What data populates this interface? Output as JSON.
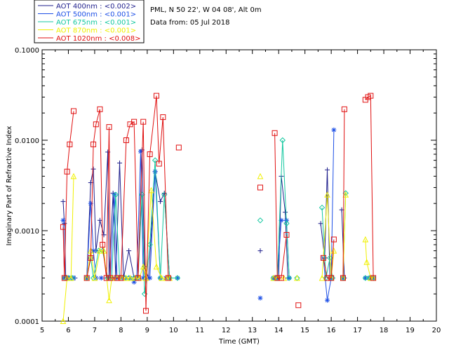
{
  "chart_data": {
    "type": "line",
    "title": "",
    "xlabel": "Time (GMT)",
    "ylabel": "Imaginary Part of Refractive Index",
    "xlim": [
      5,
      20
    ],
    "ylim": [
      0.0001,
      0.1
    ],
    "yscale": "log",
    "x_ticks": [
      5,
      6,
      7,
      8,
      9,
      10,
      11,
      12,
      13,
      14,
      15,
      16,
      17,
      18,
      19,
      20
    ],
    "x_tick_labels": [
      "5",
      "6",
      "7",
      "8",
      "9",
      "10",
      "11",
      "12",
      "13",
      "14",
      "15",
      "16",
      "17",
      "18",
      "19",
      "20"
    ],
    "y_ticks": [
      0.0001,
      0.001,
      0.01,
      0.1
    ],
    "y_tick_labels": [
      "0.0001",
      "0.0010",
      "0.0100",
      "0.1000"
    ],
    "info": {
      "site": "PML, N 50 22', W 04 08', Alt 0m",
      "date": "Data from: 05 Jul 2018"
    },
    "series": [
      {
        "name": "AOT 400nm",
        "legend": "AOT  400nm : <0.002>",
        "color": "#1e1e8c",
        "marker": "plus",
        "segments": [
          [
            [
              5.8,
              0.0021
            ],
            [
              5.85,
              0.0012
            ],
            [
              5.9,
              0.0003
            ],
            [
              6.0,
              0.0003
            ],
            [
              6.1,
              0.0003
            ],
            [
              6.25,
              0.0003
            ]
          ],
          [
            [
              6.7,
              0.0003
            ],
            [
              6.85,
              0.0034
            ],
            [
              6.95,
              0.0048
            ],
            [
              7.05,
              0.0006
            ],
            [
              7.2,
              0.0013
            ],
            [
              7.35,
              0.0009
            ],
            [
              7.5,
              0.0074
            ],
            [
              7.55,
              0.0003
            ],
            [
              7.7,
              0.0026
            ],
            [
              7.8,
              0.0003
            ],
            [
              7.95,
              0.0056
            ],
            [
              8.1,
              0.0003
            ],
            [
              8.3,
              0.0006
            ],
            [
              8.5,
              0.0003
            ],
            [
              8.65,
              0.0003
            ],
            [
              8.8,
              0.0078
            ],
            [
              8.9,
              0.0004
            ],
            [
              9.05,
              0.0003
            ],
            [
              9.3,
              0.0045
            ],
            [
              9.5,
              0.0021
            ],
            [
              9.65,
              0.0026
            ],
            [
              9.85,
              0.0003
            ],
            [
              10.15,
              0.0003
            ]
          ]
        ],
        "isolated": [
          [
            13.3,
            0.0006
          ]
        ],
        "segments2": [
          [
            [
              13.8,
              0.0003
            ],
            [
              13.9,
              0.0003
            ],
            [
              14.0,
              0.0003
            ],
            [
              14.1,
              0.004
            ],
            [
              14.25,
              0.0016
            ],
            [
              14.35,
              0.0003
            ]
          ],
          [
            [
              15.6,
              0.0012
            ],
            [
              15.75,
              0.0005
            ],
            [
              15.85,
              0.0047
            ],
            [
              15.95,
              0.0003
            ]
          ],
          [
            [
              16.4,
              0.0017
            ],
            [
              16.5,
              0.0003
            ]
          ],
          [
            [
              17.3,
              0.0003
            ],
            [
              17.45,
              0.0003
            ],
            [
              17.6,
              0.0003
            ]
          ]
        ]
      },
      {
        "name": "AOT 500nm",
        "legend": "AOT  500nm : <0.001>",
        "color": "#1e50e6",
        "marker": "asterisk",
        "segments": [
          [
            [
              5.8,
              0.0013
            ],
            [
              5.85,
              0.0003
            ],
            [
              5.95,
              0.0003
            ],
            [
              6.05,
              0.0003
            ],
            [
              6.2,
              0.0003
            ]
          ],
          [
            [
              6.7,
              0.0003
            ],
            [
              6.85,
              0.002
            ],
            [
              6.95,
              0.0006
            ],
            [
              7.05,
              0.0003
            ],
            [
              7.25,
              0.0003
            ],
            [
              7.5,
              0.0003
            ],
            [
              7.6,
              0.0003
            ],
            [
              7.75,
              0.0025
            ],
            [
              7.85,
              0.0003
            ],
            [
              8.05,
              0.0003
            ],
            [
              8.2,
              0.0003
            ],
            [
              8.35,
              0.0003
            ],
            [
              8.5,
              0.00027
            ],
            [
              8.6,
              0.0003
            ],
            [
              8.75,
              0.0075
            ],
            [
              8.85,
              0.0003
            ],
            [
              9.1,
              0.0003
            ],
            [
              9.3,
              0.0045
            ],
            [
              9.5,
              0.0003
            ],
            [
              9.7,
              0.0003
            ],
            [
              9.85,
              0.0003
            ],
            [
              10.15,
              0.0003
            ]
          ]
        ],
        "isolated": [
          [
            13.3,
            0.00018
          ]
        ],
        "segments2": [
          [
            [
              13.8,
              0.0003
            ],
            [
              13.95,
              0.0003
            ],
            [
              14.1,
              0.0013
            ],
            [
              14.3,
              0.0013
            ],
            [
              14.4,
              0.0003
            ]
          ],
          [
            [
              15.7,
              0.0005
            ],
            [
              15.85,
              0.00017
            ],
            [
              16.0,
              0.0003
            ],
            [
              16.1,
              0.013
            ]
          ],
          [
            [
              16.45,
              0.0003
            ]
          ],
          [
            [
              17.3,
              0.0003
            ],
            [
              17.45,
              0.0003
            ],
            [
              17.6,
              0.0003
            ]
          ]
        ]
      },
      {
        "name": "AOT 675nm",
        "legend": "AOT  675nm : <0.001>",
        "color": "#14c8a0",
        "marker": "diamond",
        "segments": [
          [
            [
              5.85,
              0.0003
            ],
            [
              6.0,
              0.0003
            ],
            [
              6.15,
              0.0003
            ]
          ],
          [
            [
              6.7,
              0.0003
            ],
            [
              6.85,
              0.0005
            ],
            [
              6.95,
              0.0003
            ],
            [
              7.15,
              0.0006
            ],
            [
              7.3,
              0.0006
            ],
            [
              7.5,
              0.0003
            ],
            [
              7.65,
              0.0003
            ],
            [
              7.8,
              0.0025
            ],
            [
              7.95,
              0.0003
            ],
            [
              8.15,
              0.0003
            ],
            [
              8.3,
              0.0003
            ],
            [
              8.5,
              0.0003
            ],
            [
              8.65,
              0.0003
            ],
            [
              8.8,
              0.0025
            ],
            [
              8.9,
              0.0002
            ],
            [
              9.1,
              0.0007
            ],
            [
              9.3,
              0.006
            ],
            [
              9.5,
              0.0003
            ],
            [
              9.65,
              0.0025
            ],
            [
              9.85,
              0.0003
            ],
            [
              10.15,
              0.0003
            ]
          ]
        ],
        "isolated": [
          [
            13.3,
            0.0013
          ]
        ],
        "segments2": [
          [
            [
              13.8,
              0.0003
            ],
            [
              13.95,
              0.0003
            ],
            [
              14.15,
              0.01
            ],
            [
              14.3,
              0.0012
            ],
            [
              14.4,
              0.0003
            ]
          ],
          [
            [
              14.7,
              0.0003
            ]
          ],
          [
            [
              15.65,
              0.0018
            ],
            [
              15.8,
              0.0003
            ],
            [
              15.95,
              0.0005
            ],
            [
              16.05,
              0.0003
            ]
          ],
          [
            [
              16.45,
              0.0003
            ],
            [
              16.55,
              0.0026
            ]
          ],
          [
            [
              17.3,
              0.0003
            ],
            [
              17.45,
              0.0003
            ],
            [
              17.6,
              0.0003
            ]
          ]
        ]
      },
      {
        "name": "AOT 870nm",
        "legend": "AOT  870nm : <0.001>",
        "color": "#f0f000",
        "marker": "triangle",
        "segments": [
          [
            [
              5.8,
              0.0001
            ],
            [
              5.95,
              0.0003
            ],
            [
              6.1,
              0.0003
            ],
            [
              6.2,
              0.004
            ]
          ],
          [
            [
              6.7,
              0.0003
            ],
            [
              6.85,
              0.0006
            ],
            [
              7.0,
              0.0003
            ],
            [
              7.2,
              0.0006
            ],
            [
              7.35,
              0.0006
            ],
            [
              7.55,
              0.00017
            ],
            [
              7.65,
              0.0003
            ],
            [
              7.85,
              0.0003
            ],
            [
              8.05,
              0.0003
            ],
            [
              8.2,
              0.0003
            ],
            [
              8.35,
              0.0003
            ],
            [
              8.55,
              0.0003
            ],
            [
              8.7,
              0.0003
            ],
            [
              8.85,
              0.0004
            ],
            [
              8.95,
              0.0003
            ],
            [
              9.15,
              0.0028
            ],
            [
              9.35,
              0.0004
            ],
            [
              9.55,
              0.0003
            ],
            [
              9.75,
              0.0003
            ],
            [
              9.85,
              0.0003
            ]
          ]
        ],
        "isolated": [
          [
            13.3,
            0.004
          ]
        ],
        "segments2": [
          [
            [
              13.8,
              0.0003
            ],
            [
              13.95,
              0.0003
            ],
            [
              14.2,
              0.0003
            ]
          ],
          [
            [
              14.7,
              0.0003
            ]
          ],
          [
            [
              15.65,
              0.0003
            ],
            [
              15.85,
              0.0025
            ],
            [
              16.0,
              0.0003
            ],
            [
              16.1,
              0.0006
            ]
          ],
          [
            [
              16.45,
              0.0003
            ],
            [
              16.55,
              0.0025
            ]
          ],
          [
            [
              17.3,
              0.0008
            ],
            [
              17.35,
              0.00045
            ],
            [
              17.5,
              0.0003
            ],
            [
              17.6,
              0.0003
            ]
          ]
        ]
      },
      {
        "name": "AOT 1020nm",
        "legend": "AOT 1020nm : <0.008>",
        "color": "#e01010",
        "marker": "square",
        "segments": [
          [
            [
              5.8,
              0.0011
            ],
            [
              5.85,
              0.0003
            ],
            [
              5.95,
              0.0045
            ],
            [
              6.05,
              0.009
            ],
            [
              6.2,
              0.021
            ]
          ],
          [
            [
              6.7,
              0.0003
            ],
            [
              6.85,
              0.0005
            ],
            [
              6.95,
              0.009
            ],
            [
              7.05,
              0.015
            ],
            [
              7.2,
              0.022
            ],
            [
              7.3,
              0.0007
            ],
            [
              7.45,
              0.0003
            ],
            [
              7.55,
              0.014
            ],
            [
              7.6,
              0.0003
            ],
            [
              7.85,
              0.0003
            ],
            [
              8.0,
              0.0003
            ],
            [
              8.2,
              0.01
            ],
            [
              8.35,
              0.015
            ],
            [
              8.5,
              0.016
            ],
            [
              8.65,
              0.0003
            ],
            [
              8.85,
              0.016
            ],
            [
              8.95,
              0.00013
            ],
            [
              9.1,
              0.007
            ],
            [
              9.35,
              0.031
            ],
            [
              9.45,
              0.0055
            ],
            [
              9.6,
              0.018
            ],
            [
              9.8,
              0.0003
            ]
          ],
          [
            [
              10.2,
              0.0083
            ]
          ]
        ],
        "isolated": [
          [
            13.3,
            0.003
          ]
        ],
        "segments2": [
          [
            [
              13.85,
              0.012
            ],
            [
              13.95,
              0.0003
            ],
            [
              14.1,
              0.0003
            ],
            [
              14.3,
              0.0009
            ]
          ],
          [
            [
              14.75,
              0.00015
            ]
          ],
          [
            [
              15.7,
              0.0005
            ],
            [
              15.85,
              0.0003
            ],
            [
              16.0,
              0.0003
            ],
            [
              16.1,
              0.0008
            ]
          ],
          [
            [
              16.45,
              0.0003
            ],
            [
              16.5,
              0.022
            ]
          ],
          [
            [
              17.3,
              0.028
            ],
            [
              17.4,
              0.03
            ],
            [
              17.5,
              0.031
            ],
            [
              17.6,
              0.0003
            ]
          ]
        ]
      }
    ]
  }
}
